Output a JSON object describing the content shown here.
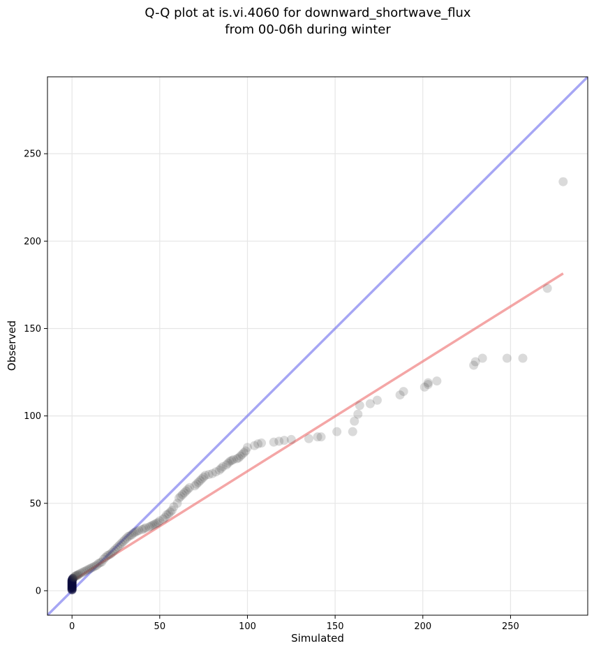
{
  "chart_data": {
    "type": "scatter",
    "title_lines": [
      "Q-Q plot at is.vi.4060 for downward_shortwave_flux",
      "from 00-06h during winter"
    ],
    "xlabel": "Simulated",
    "ylabel": "Observed",
    "xlim": [
      -14,
      294
    ],
    "ylim": [
      -14,
      294
    ],
    "xticks": [
      0,
      50,
      100,
      150,
      200,
      250
    ],
    "yticks": [
      0,
      50,
      100,
      150,
      200,
      250
    ],
    "grid": true,
    "colors": {
      "points": "#444444",
      "dense_points": "#0a0a3a",
      "identity_line": "#7777ee",
      "fit_line": "#ee7777",
      "grid": "#e6e6e6"
    },
    "identity_line": {
      "x": [
        -14,
        294
      ],
      "y": [
        -14,
        294
      ]
    },
    "fit_line": {
      "x": [
        0,
        280
      ],
      "y": [
        5.5,
        181.5
      ]
    },
    "points": {
      "x": [
        0,
        0,
        0,
        0,
        0,
        0,
        0,
        0,
        0,
        0,
        0,
        0,
        0.2,
        0.5,
        1,
        1.5,
        2,
        2.5,
        3,
        3.5,
        4,
        5,
        6,
        7,
        8,
        9,
        10,
        11,
        12,
        13,
        14,
        15,
        16,
        17,
        18,
        19,
        20,
        21,
        22,
        23,
        24,
        25,
        26,
        27,
        28,
        29,
        30,
        31,
        32,
        33,
        34,
        35,
        36,
        37,
        38,
        40,
        41,
        42,
        44,
        45,
        46,
        47,
        48,
        49,
        50,
        52,
        53,
        54,
        55,
        56,
        57,
        58,
        60,
        61,
        62,
        63,
        64,
        65,
        66,
        67,
        70,
        71,
        72,
        73,
        74,
        75,
        76,
        78,
        80,
        82,
        84,
        85,
        86,
        88,
        89,
        90,
        91,
        92,
        94,
        95,
        96,
        97,
        98,
        99,
        100,
        104,
        106,
        108,
        115,
        118,
        121,
        125,
        135,
        140,
        142,
        151,
        160,
        161,
        163,
        164,
        170,
        174,
        187,
        189,
        201,
        203,
        203,
        208,
        229,
        230,
        234,
        248,
        257,
        271,
        280
      ],
      "y": [
        0.5,
        1,
        1.5,
        2,
        2.5,
        3,
        3.5,
        4,
        4.5,
        5,
        5.5,
        6,
        6.5,
        7,
        7.5,
        8,
        8.5,
        8.5,
        9,
        9,
        9.5,
        10,
        10.5,
        11,
        11.5,
        12,
        12.5,
        13,
        13.5,
        14,
        14.5,
        15.5,
        16,
        16.5,
        18,
        19,
        20,
        20.5,
        21,
        22,
        23,
        24,
        25,
        26,
        27,
        28,
        29,
        30,
        31,
        31.5,
        32,
        33,
        33.5,
        34,
        34.5,
        35,
        35.5,
        36,
        36.5,
        37,
        37.5,
        38,
        38.5,
        39,
        40,
        41,
        42,
        43.5,
        44,
        45,
        46,
        48,
        50,
        53,
        54,
        55,
        56,
        57,
        58,
        59,
        60,
        61,
        62,
        63,
        64,
        65,
        66,
        66.5,
        67,
        68,
        69,
        70,
        71,
        72,
        73,
        74,
        74.5,
        75,
        75.5,
        76,
        77,
        78,
        79,
        80,
        82,
        83,
        84,
        84.5,
        85,
        85.5,
        86,
        86.5,
        87,
        88,
        88,
        91,
        91,
        97,
        101,
        106,
        107,
        109,
        112,
        114,
        116.5,
        118,
        119,
        120,
        129,
        131,
        133,
        133,
        133,
        173,
        234
      ]
    }
  }
}
